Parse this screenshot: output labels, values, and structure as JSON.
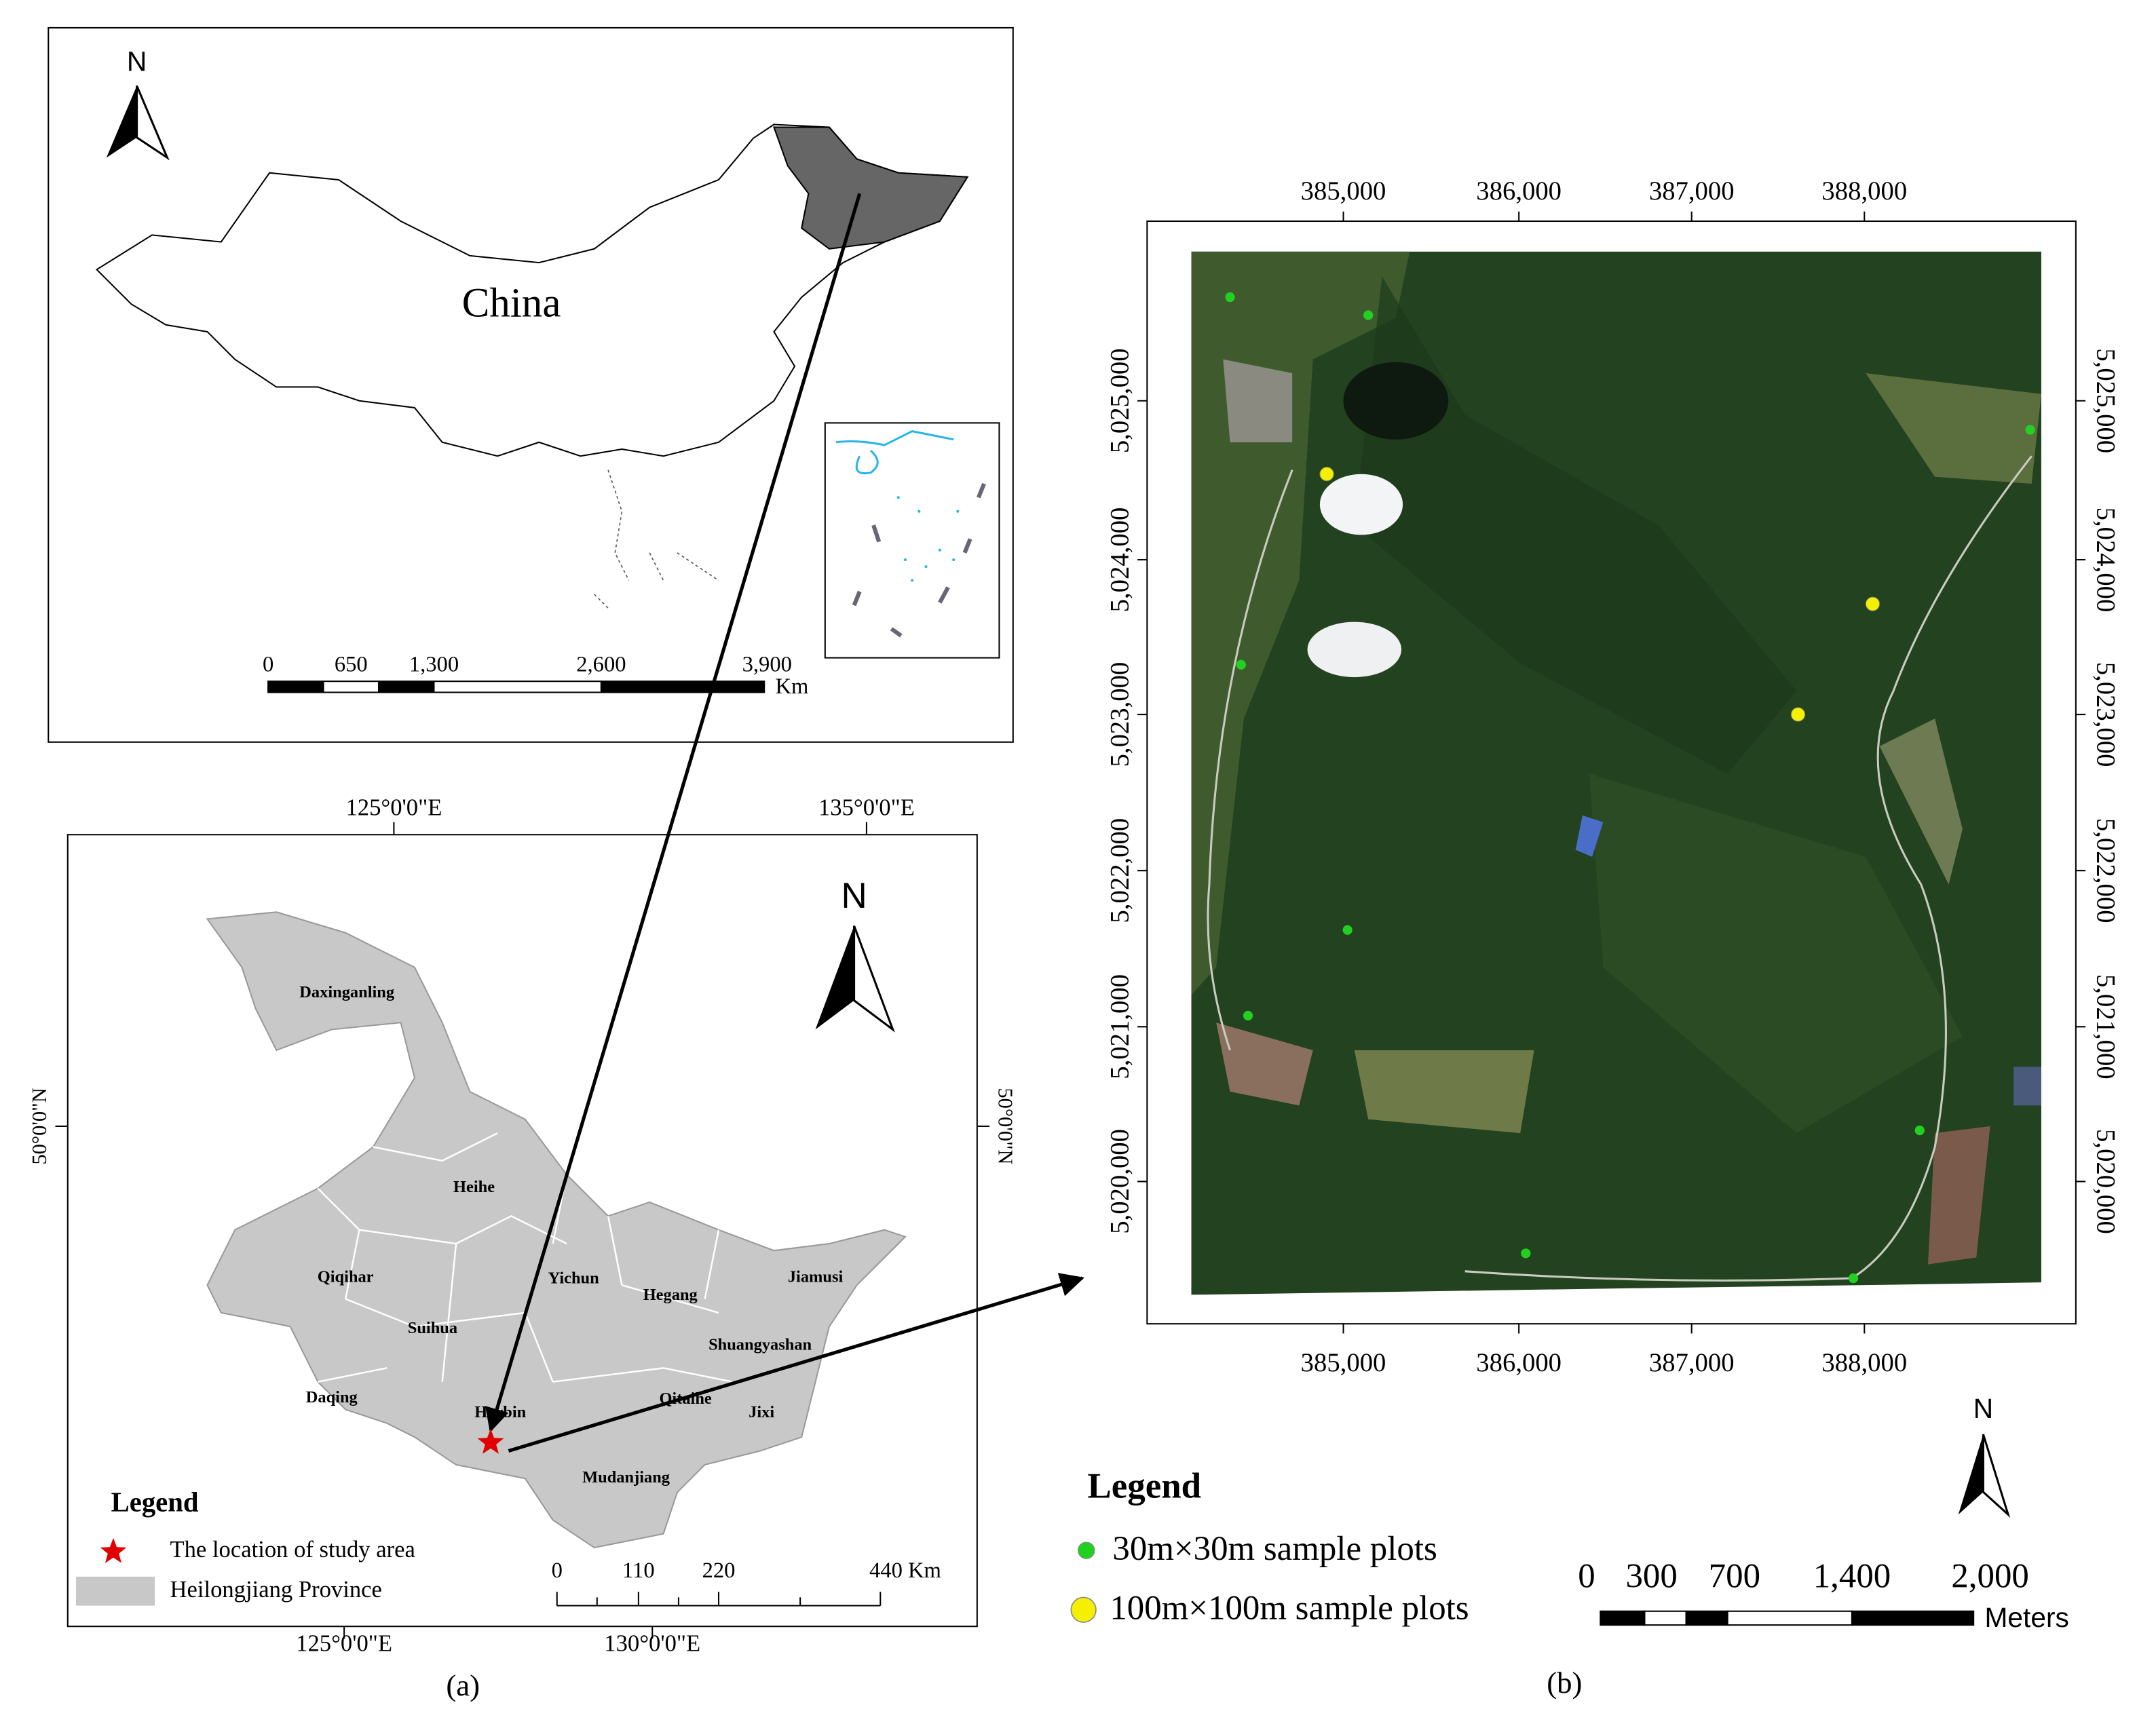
{
  "panel_a": {
    "china_map": {
      "label": "China",
      "north": "N",
      "scale_ticks": [
        "0",
        "650",
        "1,300",
        "2,600",
        "3,900"
      ],
      "scale_unit": "Km"
    },
    "province_map": {
      "top_labels": [
        "125°0'0\"E",
        "135°0'0\"E"
      ],
      "bottom_labels": [
        "125°0'0\"E",
        "130°0'0\"E"
      ],
      "left_label": "50°0'0\"N",
      "right_label": "50°0'0\"N",
      "north": "N",
      "cities": [
        "Daxinganling",
        "Heihe",
        "Qiqihar",
        "Yichun",
        "Hegang",
        "Jiamusi",
        "Suihua",
        "Shuangyashan",
        "Daqing",
        "Harbin",
        "Qitaihe",
        "Jixi",
        "Mudanjiang"
      ],
      "legend": {
        "title": "Legend",
        "items": [
          "The location of study area",
          "Heilongjiang Province"
        ]
      },
      "scale_ticks": [
        "0",
        "110",
        "220",
        "440 Km"
      ]
    },
    "caption": "(a)"
  },
  "panel_b": {
    "top_labels": [
      "385,000",
      "386,000",
      "387,000",
      "388,000"
    ],
    "bottom_labels": [
      "385,000",
      "386,000",
      "387,000",
      "388,000"
    ],
    "left_labels": [
      "5,025,000",
      "5,024,000",
      "5,023,000",
      "5,022,000",
      "5,021,000",
      "5,020,000"
    ],
    "right_labels": [
      "5,025,000",
      "5,024,000",
      "5,023,000",
      "5,022,000",
      "5,021,000",
      "5,020,000"
    ],
    "north": "N",
    "legend": {
      "title": "Legend",
      "items": [
        "30m×30m sample plots",
        "100m×100m sample plots"
      ]
    },
    "scale_ticks": [
      "0",
      "300",
      "700",
      "1,400",
      "2,000"
    ],
    "scale_unit": "Meters",
    "caption": "(b)"
  }
}
